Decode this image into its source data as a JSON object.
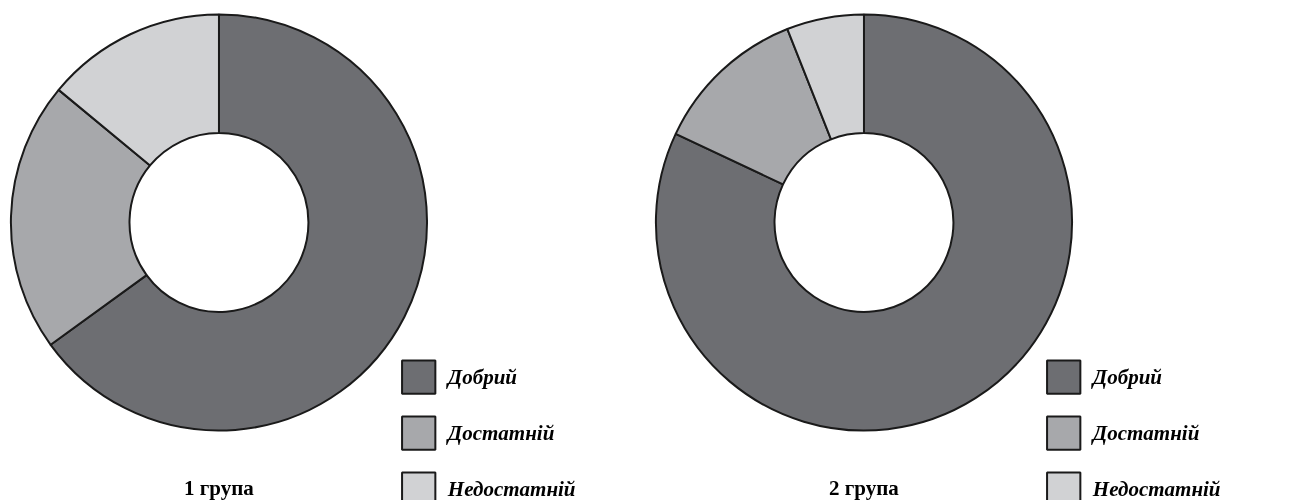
{
  "chart_data": [
    {
      "type": "donut",
      "title": "1 група",
      "categories": [
        "Добрий",
        "Достатній",
        "Недостатній"
      ],
      "values": [
        65,
        21,
        14
      ],
      "colors": [
        "#6d6e72",
        "#a7a8ab",
        "#d1d2d4"
      ],
      "legend": "bottom right"
    },
    {
      "type": "donut",
      "title": "2 група",
      "categories": [
        "Добрий",
        "Достатній",
        "Недостатній"
      ],
      "values": [
        82,
        12,
        6
      ],
      "colors": [
        "#6d6e72",
        "#a7a8ab",
        "#d1d2d4"
      ],
      "legend": "bottom right"
    }
  ]
}
